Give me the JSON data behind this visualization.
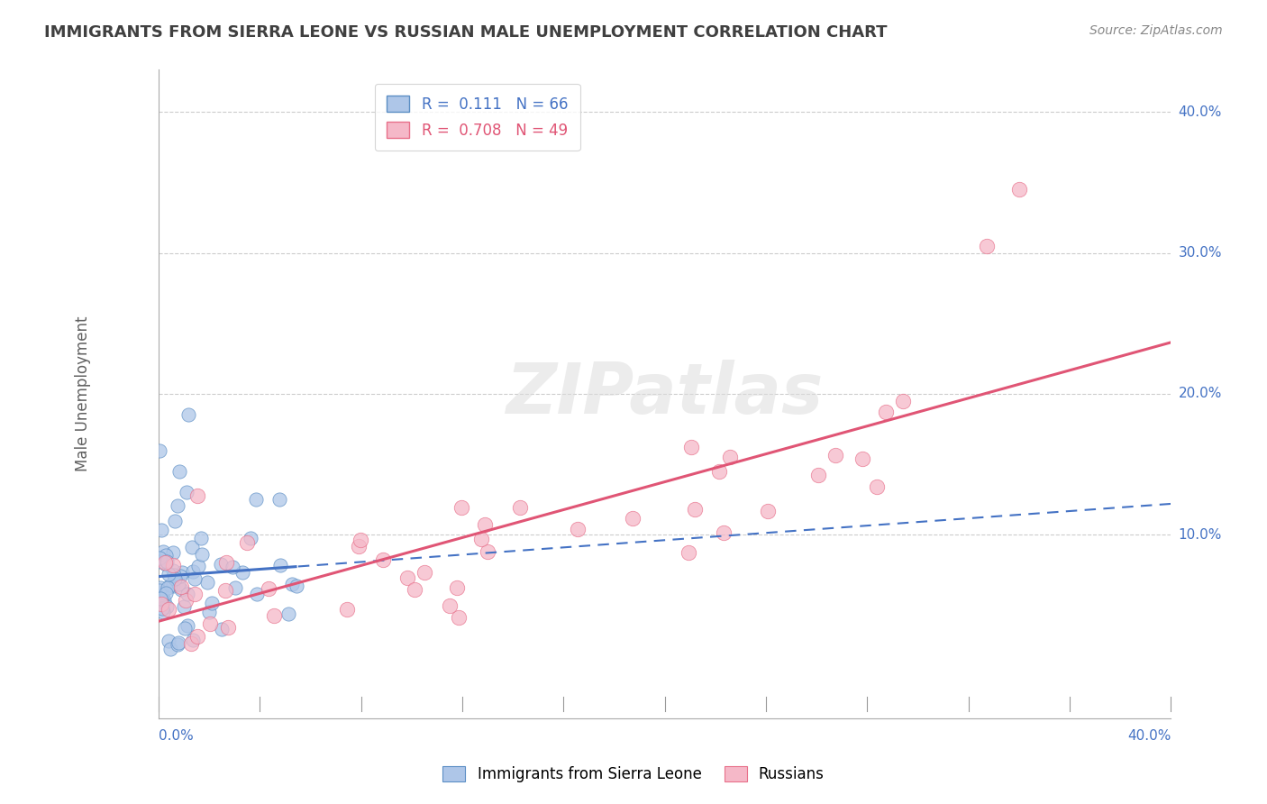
{
  "title": "IMMIGRANTS FROM SIERRA LEONE VS RUSSIAN MALE UNEMPLOYMENT CORRELATION CHART",
  "source": "Source: ZipAtlas.com",
  "ylabel": "Male Unemployment",
  "xlim": [
    0.0,
    0.4
  ],
  "ylim": [
    -0.03,
    0.43
  ],
  "legend_blue_label": "Immigrants from Sierra Leone",
  "legend_pink_label": "Russians",
  "legend_blue_R": "R =  0.111",
  "legend_blue_N": "N = 66",
  "legend_pink_R": "R =  0.708",
  "legend_pink_N": "N = 49",
  "blue_fill_color": "#aec6e8",
  "pink_fill_color": "#f5b8c8",
  "blue_edge_color": "#5b8ec4",
  "pink_edge_color": "#e8708a",
  "blue_line_color": "#4472c4",
  "pink_line_color": "#e05575",
  "blue_scatter_seed": 10,
  "pink_scatter_seed": 20,
  "watermark_text": "ZIPatlas",
  "background_color": "#ffffff",
  "grid_color": "#cccccc",
  "title_color": "#404040",
  "axis_label_color": "#4472c4",
  "marker_size": 120,
  "marker_alpha": 0.75
}
